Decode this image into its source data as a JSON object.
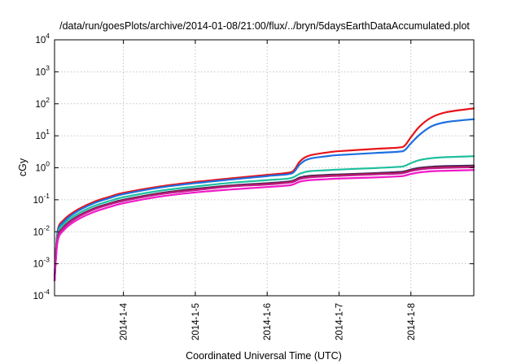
{
  "chart_data": {
    "type": "line",
    "title": "/data/run/goesPlots/archive/2014-01-08/21:00/flux/../bryn/5daysEarthDataAccumulated.plot",
    "xlabel": "Coordinated Universal Time (UTC)",
    "ylabel": "cGy",
    "y_scale": "log",
    "ylim": [
      0.0001,
      10000
    ],
    "y_ticks": [
      {
        "base": "10",
        "exp": "-4",
        "value": 0.0001
      },
      {
        "base": "10",
        "exp": "-3",
        "value": 0.001
      },
      {
        "base": "10",
        "exp": "-2",
        "value": 0.01
      },
      {
        "base": "10",
        "exp": "-1",
        "value": 0.1
      },
      {
        "base": "10",
        "exp": "0",
        "value": 1
      },
      {
        "base": "10",
        "exp": "1",
        "value": 10
      },
      {
        "base": "10",
        "exp": "2",
        "value": 100
      },
      {
        "base": "10",
        "exp": "3",
        "value": 1000
      },
      {
        "base": "10",
        "exp": "4",
        "value": 10000
      }
    ],
    "xlim": [
      "2014-01-03 01:00",
      "2014-01-08 21:00"
    ],
    "x_ticks": [
      "2014-1-4",
      "2014-1-5",
      "2014-1-6",
      "2014-1-7",
      "2014-1-8"
    ],
    "x_tick_values": [
      "2014-01-04",
      "2014-01-05",
      "2014-01-06",
      "2014-01-07",
      "2014-01-08"
    ],
    "grid": true,
    "legend": "none",
    "series": [
      {
        "color": "#e8141a",
        "points": [
          [
            "2014-01-03 01:00",
            0.0004
          ],
          [
            "2014-01-03 02:00",
            0.01
          ],
          [
            "2014-01-03 04:00",
            0.023
          ],
          [
            "2014-01-03 08:00",
            0.045
          ],
          [
            "2014-01-03 14:00",
            0.085
          ],
          [
            "2014-01-03 20:00",
            0.13
          ],
          [
            "2014-01-04 00:00",
            0.165
          ],
          [
            "2014-01-04 12:00",
            0.26
          ],
          [
            "2014-01-05 00:00",
            0.36
          ],
          [
            "2014-01-05 12:00",
            0.47
          ],
          [
            "2014-01-06 00:00",
            0.6
          ],
          [
            "2014-01-06 07:00",
            0.7
          ],
          [
            "2014-01-06 09:00",
            0.85
          ],
          [
            "2014-01-06 11:00",
            1.6
          ],
          [
            "2014-01-06 14:00",
            2.4
          ],
          [
            "2014-01-06 20:00",
            3.0
          ],
          [
            "2014-01-07 00:00",
            3.3
          ],
          [
            "2014-01-07 12:00",
            3.9
          ],
          [
            "2014-01-07 20:00",
            4.3
          ],
          [
            "2014-01-07 22:00",
            5.0
          ],
          [
            "2014-01-08 00:00",
            9.0
          ],
          [
            "2014-01-08 03:00",
            20
          ],
          [
            "2014-01-08 07:00",
            38
          ],
          [
            "2014-01-08 12:00",
            55
          ],
          [
            "2014-01-08 21:00",
            72
          ]
        ]
      },
      {
        "color": "#1c6fe0",
        "points": [
          [
            "2014-01-03 01:00",
            0.0004
          ],
          [
            "2014-01-03 02:00",
            0.009
          ],
          [
            "2014-01-03 04:00",
            0.02
          ],
          [
            "2014-01-03 08:00",
            0.04
          ],
          [
            "2014-01-03 14:00",
            0.077
          ],
          [
            "2014-01-03 20:00",
            0.118
          ],
          [
            "2014-01-04 00:00",
            0.15
          ],
          [
            "2014-01-04 12:00",
            0.24
          ],
          [
            "2014-01-05 00:00",
            0.33
          ],
          [
            "2014-01-05 12:00",
            0.43
          ],
          [
            "2014-01-06 00:00",
            0.55
          ],
          [
            "2014-01-06 07:00",
            0.63
          ],
          [
            "2014-01-06 09:00",
            0.75
          ],
          [
            "2014-01-06 11:00",
            1.3
          ],
          [
            "2014-01-06 14:00",
            1.9
          ],
          [
            "2014-01-06 20:00",
            2.3
          ],
          [
            "2014-01-07 00:00",
            2.5
          ],
          [
            "2014-01-07 12:00",
            2.9
          ],
          [
            "2014-01-07 20:00",
            3.2
          ],
          [
            "2014-01-07 22:00",
            3.6
          ],
          [
            "2014-01-08 00:00",
            5.8
          ],
          [
            "2014-01-08 03:00",
            11
          ],
          [
            "2014-01-08 07:00",
            20
          ],
          [
            "2014-01-08 12:00",
            27
          ],
          [
            "2014-01-08 21:00",
            33
          ]
        ]
      },
      {
        "color": "#1fbf9f",
        "points": [
          [
            "2014-01-03 01:00",
            0.0004
          ],
          [
            "2014-01-03 02:00",
            0.0075
          ],
          [
            "2014-01-03 04:00",
            0.017
          ],
          [
            "2014-01-03 08:00",
            0.033
          ],
          [
            "2014-01-03 14:00",
            0.063
          ],
          [
            "2014-01-03 20:00",
            0.095
          ],
          [
            "2014-01-04 00:00",
            0.12
          ],
          [
            "2014-01-04 12:00",
            0.19
          ],
          [
            "2014-01-05 00:00",
            0.26
          ],
          [
            "2014-01-05 12:00",
            0.34
          ],
          [
            "2014-01-06 00:00",
            0.41
          ],
          [
            "2014-01-06 07:00",
            0.46
          ],
          [
            "2014-01-06 09:00",
            0.52
          ],
          [
            "2014-01-06 11:00",
            0.66
          ],
          [
            "2014-01-06 14:00",
            0.78
          ],
          [
            "2014-01-06 20:00",
            0.84
          ],
          [
            "2014-01-07 00:00",
            0.88
          ],
          [
            "2014-01-07 12:00",
            0.98
          ],
          [
            "2014-01-07 20:00",
            1.07
          ],
          [
            "2014-01-07 22:00",
            1.15
          ],
          [
            "2014-01-08 00:00",
            1.4
          ],
          [
            "2014-01-08 03:00",
            1.75
          ],
          [
            "2014-01-08 07:00",
            2.0
          ],
          [
            "2014-01-08 12:00",
            2.15
          ],
          [
            "2014-01-08 21:00",
            2.3
          ]
        ]
      },
      {
        "color": "#3a2a7a",
        "points": [
          [
            "2014-01-03 01:00",
            0.0003
          ],
          [
            "2014-01-03 02:00",
            0.006
          ],
          [
            "2014-01-03 04:00",
            0.014
          ],
          [
            "2014-01-03 08:00",
            0.028
          ],
          [
            "2014-01-03 14:00",
            0.053
          ],
          [
            "2014-01-03 20:00",
            0.08
          ],
          [
            "2014-01-04 00:00",
            0.1
          ],
          [
            "2014-01-04 12:00",
            0.16
          ],
          [
            "2014-01-05 00:00",
            0.22
          ],
          [
            "2014-01-05 12:00",
            0.28
          ],
          [
            "2014-01-06 00:00",
            0.33
          ],
          [
            "2014-01-06 07:00",
            0.37
          ],
          [
            "2014-01-06 09:00",
            0.41
          ],
          [
            "2014-01-06 11:00",
            0.5
          ],
          [
            "2014-01-06 14:00",
            0.56
          ],
          [
            "2014-01-06 20:00",
            0.6
          ],
          [
            "2014-01-07 00:00",
            0.62
          ],
          [
            "2014-01-07 12:00",
            0.68
          ],
          [
            "2014-01-07 20:00",
            0.74
          ],
          [
            "2014-01-07 22:00",
            0.78
          ],
          [
            "2014-01-08 00:00",
            0.88
          ],
          [
            "2014-01-08 03:00",
            1.0
          ],
          [
            "2014-01-08 07:00",
            1.08
          ],
          [
            "2014-01-08 12:00",
            1.13
          ],
          [
            "2014-01-08 21:00",
            1.18
          ]
        ]
      },
      {
        "color": "#8a2020",
        "points": [
          [
            "2014-01-03 01:00",
            0.0003
          ],
          [
            "2014-01-03 02:00",
            0.0058
          ],
          [
            "2014-01-03 04:00",
            0.0135
          ],
          [
            "2014-01-03 08:00",
            0.027
          ],
          [
            "2014-01-03 14:00",
            0.051
          ],
          [
            "2014-01-03 20:00",
            0.077
          ],
          [
            "2014-01-04 00:00",
            0.096
          ],
          [
            "2014-01-04 12:00",
            0.154
          ],
          [
            "2014-01-05 00:00",
            0.21
          ],
          [
            "2014-01-05 12:00",
            0.27
          ],
          [
            "2014-01-06 00:00",
            0.315
          ],
          [
            "2014-01-06 07:00",
            0.355
          ],
          [
            "2014-01-06 09:00",
            0.39
          ],
          [
            "2014-01-06 11:00",
            0.47
          ],
          [
            "2014-01-06 14:00",
            0.53
          ],
          [
            "2014-01-06 20:00",
            0.57
          ],
          [
            "2014-01-07 00:00",
            0.59
          ],
          [
            "2014-01-07 12:00",
            0.65
          ],
          [
            "2014-01-07 20:00",
            0.7
          ],
          [
            "2014-01-07 22:00",
            0.74
          ],
          [
            "2014-01-08 00:00",
            0.83
          ],
          [
            "2014-01-08 03:00",
            0.94
          ],
          [
            "2014-01-08 07:00",
            1.02
          ],
          [
            "2014-01-08 12:00",
            1.06
          ],
          [
            "2014-01-08 21:00",
            1.1
          ]
        ]
      },
      {
        "color": "#c01a8a",
        "points": [
          [
            "2014-01-03 01:00",
            0.0003
          ],
          [
            "2014-01-03 02:00",
            0.0056
          ],
          [
            "2014-01-03 04:00",
            0.013
          ],
          [
            "2014-01-03 08:00",
            0.026
          ],
          [
            "2014-01-03 14:00",
            0.049
          ],
          [
            "2014-01-03 20:00",
            0.074
          ],
          [
            "2014-01-04 00:00",
            0.092
          ],
          [
            "2014-01-04 12:00",
            0.148
          ],
          [
            "2014-01-05 00:00",
            0.2
          ],
          [
            "2014-01-05 12:00",
            0.26
          ],
          [
            "2014-01-06 00:00",
            0.3
          ],
          [
            "2014-01-06 07:00",
            0.34
          ],
          [
            "2014-01-06 09:00",
            0.37
          ],
          [
            "2014-01-06 11:00",
            0.45
          ],
          [
            "2014-01-06 14:00",
            0.5
          ],
          [
            "2014-01-06 20:00",
            0.54
          ],
          [
            "2014-01-07 00:00",
            0.56
          ],
          [
            "2014-01-07 12:00",
            0.62
          ],
          [
            "2014-01-07 20:00",
            0.66
          ],
          [
            "2014-01-07 22:00",
            0.7
          ],
          [
            "2014-01-08 00:00",
            0.79
          ],
          [
            "2014-01-08 03:00",
            0.89
          ],
          [
            "2014-01-08 07:00",
            0.96
          ],
          [
            "2014-01-08 12:00",
            1.0
          ],
          [
            "2014-01-08 21:00",
            1.04
          ]
        ]
      },
      {
        "color": "#f019c8",
        "points": [
          [
            "2014-01-03 01:00",
            0.0003
          ],
          [
            "2014-01-03 02:00",
            0.0048
          ],
          [
            "2014-01-03 04:00",
            0.011
          ],
          [
            "2014-01-03 08:00",
            0.022
          ],
          [
            "2014-01-03 14:00",
            0.041
          ],
          [
            "2014-01-03 20:00",
            0.062
          ],
          [
            "2014-01-04 00:00",
            0.078
          ],
          [
            "2014-01-04 12:00",
            0.125
          ],
          [
            "2014-01-05 00:00",
            0.17
          ],
          [
            "2014-01-05 12:00",
            0.21
          ],
          [
            "2014-01-06 00:00",
            0.25
          ],
          [
            "2014-01-06 07:00",
            0.28
          ],
          [
            "2014-01-06 09:00",
            0.31
          ],
          [
            "2014-01-06 11:00",
            0.37
          ],
          [
            "2014-01-06 14:00",
            0.41
          ],
          [
            "2014-01-06 20:00",
            0.44
          ],
          [
            "2014-01-07 00:00",
            0.46
          ],
          [
            "2014-01-07 12:00",
            0.5
          ],
          [
            "2014-01-07 20:00",
            0.54
          ],
          [
            "2014-01-07 22:00",
            0.57
          ],
          [
            "2014-01-08 00:00",
            0.64
          ],
          [
            "2014-01-08 03:00",
            0.72
          ],
          [
            "2014-01-08 07:00",
            0.78
          ],
          [
            "2014-01-08 12:00",
            0.81
          ],
          [
            "2014-01-08 21:00",
            0.85
          ]
        ]
      }
    ]
  }
}
